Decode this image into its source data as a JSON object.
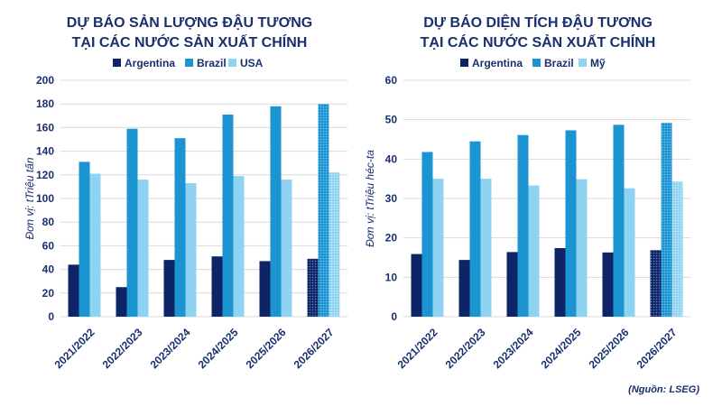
{
  "colors": {
    "text": "#1a2f6e",
    "argentina": "#0d2466",
    "brazil": "#1c94d2",
    "third": "#8fd3f3",
    "grid": "#d9d9d9",
    "hatch": "forecast-dotted-pattern"
  },
  "source": "(Nguồn: LSEG)",
  "chart_data": [
    {
      "type": "bar",
      "title_line1": "DỰ BÁO SẢN LƯỢNG ĐẬU TƯƠNG",
      "title_line2": "TẠI CÁC NƯỚC SẢN XUẤT CHÍNH",
      "ylabel": "Đơn vị: tTriệu tấn",
      "ylim": [
        0,
        200
      ],
      "yticks": [
        0,
        20,
        40,
        60,
        80,
        100,
        120,
        140,
        160,
        180,
        200
      ],
      "categories": [
        "2021/2022",
        "2022/2023",
        "2023/2024",
        "2024/2025",
        "2025/2026",
        "2026/2027"
      ],
      "legend": [
        "Argentina",
        "Brazil",
        "USA"
      ],
      "legend_position": "top-center",
      "series": [
        {
          "name": "Argentina",
          "values": [
            44,
            25,
            48,
            51,
            47,
            49
          ]
        },
        {
          "name": "Brazil",
          "values": [
            131,
            159,
            151,
            171,
            178,
            180
          ]
        },
        {
          "name": "USA",
          "values": [
            121,
            116,
            113,
            119,
            116,
            122
          ]
        }
      ],
      "forecast_category": "2026/2027"
    },
    {
      "type": "bar",
      "title_line1": "DỰ BÁO DIỆN TÍCH ĐẬU TƯƠNG",
      "title_line2": "TẠI CÁC NƯỚC SẢN XUẤT CHÍNH",
      "ylabel": "Đơn vị: tTriệu héc-ta",
      "ylim": [
        0,
        60
      ],
      "yticks": [
        0,
        10,
        20,
        30,
        40,
        50,
        60
      ],
      "categories": [
        "2021/2022",
        "2022/2023",
        "2023/2024",
        "2024/2025",
        "2025/2026",
        "2026/2027"
      ],
      "legend": [
        "Argentina",
        "Brazil",
        "Mỹ"
      ],
      "legend_position": "top-center",
      "series": [
        {
          "name": "Argentina",
          "values": [
            15.9,
            14.4,
            16.4,
            17.4,
            16.3,
            16.9
          ]
        },
        {
          "name": "Brazil",
          "values": [
            41.8,
            44.5,
            46.1,
            47.3,
            48.7,
            49.2
          ]
        },
        {
          "name": "Mỹ",
          "values": [
            35.0,
            35.0,
            33.3,
            34.9,
            32.6,
            34.3
          ]
        }
      ],
      "forecast_category": "2026/2027"
    }
  ]
}
